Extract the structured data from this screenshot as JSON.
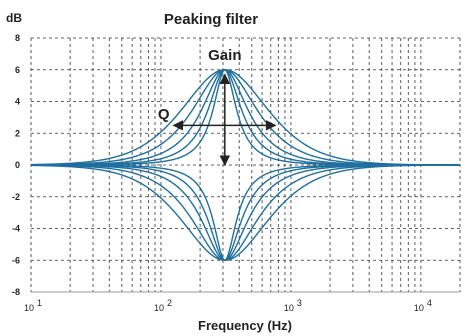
{
  "chart_data": {
    "type": "line",
    "title": "Peaking filter",
    "y_unit": "dB",
    "xlabel": "Frequency (Hz)",
    "x_scale": "log",
    "xlim": [
      10,
      20000
    ],
    "ylim": [
      -8,
      8
    ],
    "y_ticks": [
      "8",
      "6",
      "4",
      "2",
      "0",
      "-2",
      "-4",
      "-6",
      "-8"
    ],
    "x_ticks": [
      {
        "base": "10",
        "exp": "1"
      },
      {
        "base": "10",
        "exp": "2"
      },
      {
        "base": "10",
        "exp": "3"
      },
      {
        "base": "10",
        "exp": "4"
      }
    ],
    "grid": true,
    "center_frequency": 310,
    "gains_db": [
      6,
      -6
    ],
    "q_values": [
      0.5,
      0.7,
      1.0,
      1.4,
      2.0
    ],
    "line_color": "#1f6f9f",
    "annotations": {
      "gain": "Gain",
      "q": "Q"
    }
  }
}
